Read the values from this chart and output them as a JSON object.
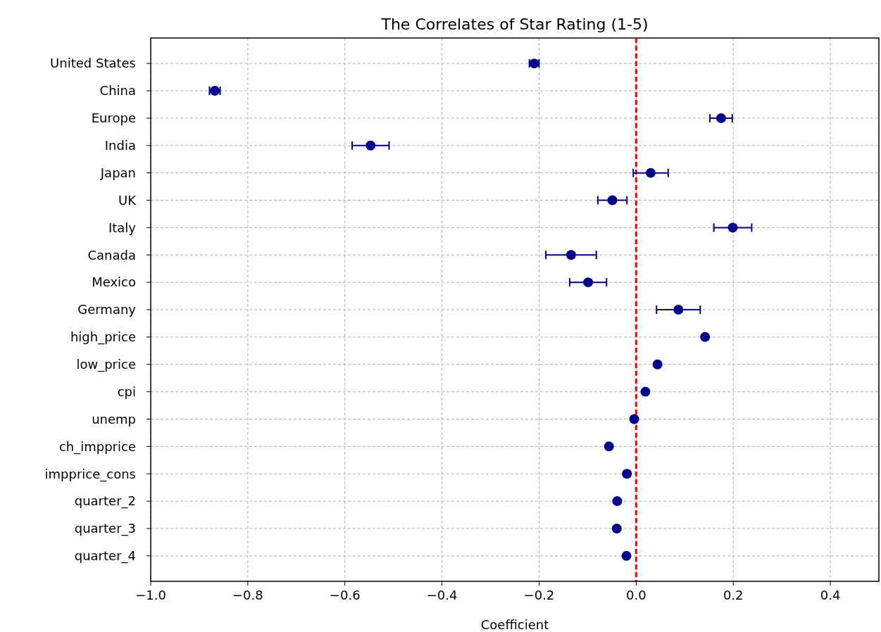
{
  "chart_data": {
    "type": "scatter",
    "orientation": "horizontal",
    "title": "The Correlates of Star Rating (1-5)",
    "xlabel": "Coefficient",
    "categories": [
      "United States",
      "China",
      "Europe",
      "India",
      "Japan",
      "UK",
      "Italy",
      "Canada",
      "Mexico",
      "Germany",
      "high_price",
      "low_price",
      "cpi",
      "unemp",
      "ch_impprice",
      "impprice_cons",
      "quarter_2",
      "quarter_3",
      "quarter_4"
    ],
    "values": [
      -0.21,
      -0.868,
      0.175,
      -0.547,
      0.03,
      -0.049,
      0.199,
      -0.134,
      -0.099,
      0.087,
      0.142,
      0.044,
      0.019,
      -0.004,
      -0.056,
      -0.019,
      -0.039,
      -0.04,
      -0.02
    ],
    "errors": [
      0.01,
      0.011,
      0.023,
      0.038,
      0.036,
      0.03,
      0.039,
      0.052,
      0.038,
      0.045,
      null,
      null,
      null,
      null,
      null,
      null,
      null,
      null,
      null
    ],
    "color": "#00008b",
    "marker": "circle",
    "xlim": [
      -1.0,
      0.5
    ],
    "xticks": [
      {
        "value": -1.0,
        "label": "−1.0"
      },
      {
        "value": -0.8,
        "label": "−0.8"
      },
      {
        "value": -0.6,
        "label": "−0.6"
      },
      {
        "value": -0.4,
        "label": "−0.4"
      },
      {
        "value": -0.2,
        "label": "−0.2"
      },
      {
        "value": 0.0,
        "label": "0.0"
      },
      {
        "value": 0.2,
        "label": "0.2"
      },
      {
        "value": 0.4,
        "label": "0.4"
      }
    ],
    "grid": true,
    "ref_lines": [
      {
        "axis": "x",
        "value": 0,
        "color": "#ff0000",
        "line_style": "dashed"
      }
    ]
  }
}
